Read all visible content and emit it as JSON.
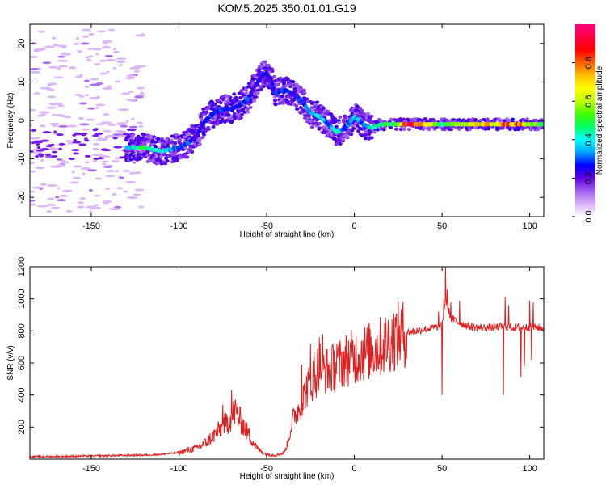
{
  "title": "KOM5.2025.350.01.01.G19",
  "chart_data": [
    {
      "type": "heatmap",
      "name": "spectrogram",
      "xlabel": "Height of straight line (km)",
      "ylabel": "Frequency (Hz)",
      "xlim": [
        -185,
        108
      ],
      "ylim": [
        -25,
        25
      ],
      "xticks": [
        -150,
        -100,
        -50,
        0,
        50,
        100
      ],
      "yticks": [
        -20,
        -10,
        0,
        10,
        20
      ],
      "colorbar": {
        "label": "Normalized spectral amplitude",
        "range": [
          0,
          1
        ],
        "ticks": [
          0.0,
          0.2,
          0.4,
          0.6,
          0.8
        ],
        "colors": [
          "#ffffff",
          "#d8b0f8",
          "#a060f0",
          "#6000e0",
          "#0000ff",
          "#00a0ff",
          "#00ffff",
          "#00ff60",
          "#40ff00",
          "#c0ff00",
          "#ffff00",
          "#ffc000",
          "#ff6000",
          "#ff0000",
          "#ff0040",
          "#ff0080"
        ]
      },
      "ridge": {
        "x": [
          -130,
          -120,
          -110,
          -100,
          -95,
          -90,
          -85,
          -80,
          -75,
          -70,
          -65,
          -60,
          -58,
          -55,
          -52,
          -50,
          -48,
          -45,
          -40,
          -35,
          -30,
          -25,
          -20,
          -15,
          -10,
          -5,
          0,
          5,
          10,
          15,
          20,
          25,
          30,
          35,
          40,
          45,
          50,
          55,
          60,
          65,
          70,
          75,
          80,
          85,
          90,
          95,
          100,
          105,
          108
        ],
        "freq": [
          -7,
          -7,
          -8,
          -7,
          -6,
          -4,
          0,
          2,
          3,
          3,
          4,
          6,
          8,
          10,
          12,
          12,
          11,
          7,
          8,
          7,
          5,
          2,
          1,
          -1,
          -3,
          -2,
          1,
          -1,
          -2,
          -1,
          -1,
          -1,
          -1,
          -1,
          -1,
          -1,
          -1,
          -1,
          -1,
          -1,
          -1,
          -1,
          -1,
          -1,
          -1,
          -1,
          -1,
          -1,
          -1
        ],
        "amplitude": [
          0.35,
          0.5,
          0.4,
          0.3,
          0.3,
          0.25,
          0.25,
          0.3,
          0.3,
          0.25,
          0.3,
          0.3,
          0.2,
          0.25,
          0.25,
          0.3,
          0.2,
          0.3,
          0.3,
          0.25,
          0.3,
          0.3,
          0.45,
          0.3,
          0.45,
          0.3,
          0.4,
          0.3,
          0.45,
          0.45,
          0.5,
          0.55,
          0.95,
          0.9,
          0.85,
          0.6,
          0.5,
          0.55,
          0.6,
          0.65,
          0.7,
          0.75,
          0.7,
          0.9,
          0.8,
          0.85,
          0.6,
          0.55,
          0.55
        ]
      }
    },
    {
      "type": "line",
      "name": "snr",
      "xlabel": "Height of straight line (km)",
      "ylabel": "SNR (v/v)",
      "xlim": [
        -185,
        108
      ],
      "ylim": [
        0,
        1200
      ],
      "xticks": [
        -150,
        -100,
        -50,
        0,
        50,
        100
      ],
      "yticks": [
        200,
        400,
        600,
        800,
        1000,
        1200
      ],
      "color": "#e02020",
      "envelope": {
        "x": [
          -185,
          -160,
          -140,
          -120,
          -110,
          -100,
          -90,
          -85,
          -80,
          -75,
          -70,
          -68,
          -65,
          -60,
          -55,
          -50,
          -45,
          -40,
          -38,
          -35,
          -30,
          -28,
          -25,
          -22,
          -20,
          -18,
          -15,
          -10,
          -5,
          0,
          5,
          10,
          15,
          20,
          25,
          30,
          35,
          40,
          45,
          50,
          52,
          55,
          60,
          65,
          70,
          75,
          80,
          85,
          90,
          95,
          100,
          105,
          108
        ],
        "y": [
          15,
          18,
          22,
          25,
          30,
          40,
          70,
          100,
          150,
          200,
          260,
          300,
          240,
          150,
          60,
          30,
          25,
          40,
          100,
          250,
          350,
          420,
          480,
          520,
          600,
          560,
          550,
          580,
          620,
          640,
          660,
          680,
          700,
          740,
          770,
          790,
          800,
          810,
          820,
          830,
          1000,
          880,
          850,
          830,
          820,
          820,
          820,
          830,
          820,
          820,
          825,
          820,
          815
        ]
      },
      "spikes": [
        {
          "x": -70,
          "y": 430
        },
        {
          "x": -75,
          "y": 340
        },
        {
          "x": -30,
          "y": 590
        },
        {
          "x": -25,
          "y": 720
        },
        {
          "x": -23,
          "y": 670
        },
        {
          "x": -20,
          "y": 760
        },
        {
          "x": -18,
          "y": 780
        },
        {
          "x": -10,
          "y": 720
        },
        {
          "x": 5,
          "y": 740
        },
        {
          "x": 12,
          "y": 720
        },
        {
          "x": 48,
          "y": 920
        },
        {
          "x": 50,
          "y": 400
        },
        {
          "x": 51,
          "y": 1000
        },
        {
          "x": 52,
          "y": 1210
        },
        {
          "x": 53,
          "y": 1060
        },
        {
          "x": 55,
          "y": 980
        },
        {
          "x": 60,
          "y": 990
        },
        {
          "x": 85,
          "y": 400
        },
        {
          "x": 86,
          "y": 1010
        },
        {
          "x": 88,
          "y": 960
        },
        {
          "x": 95,
          "y": 510
        },
        {
          "x": 97,
          "y": 580
        },
        {
          "x": 100,
          "y": 990
        },
        {
          "x": 101,
          "y": 620
        },
        {
          "x": 102,
          "y": 980
        }
      ]
    }
  ]
}
